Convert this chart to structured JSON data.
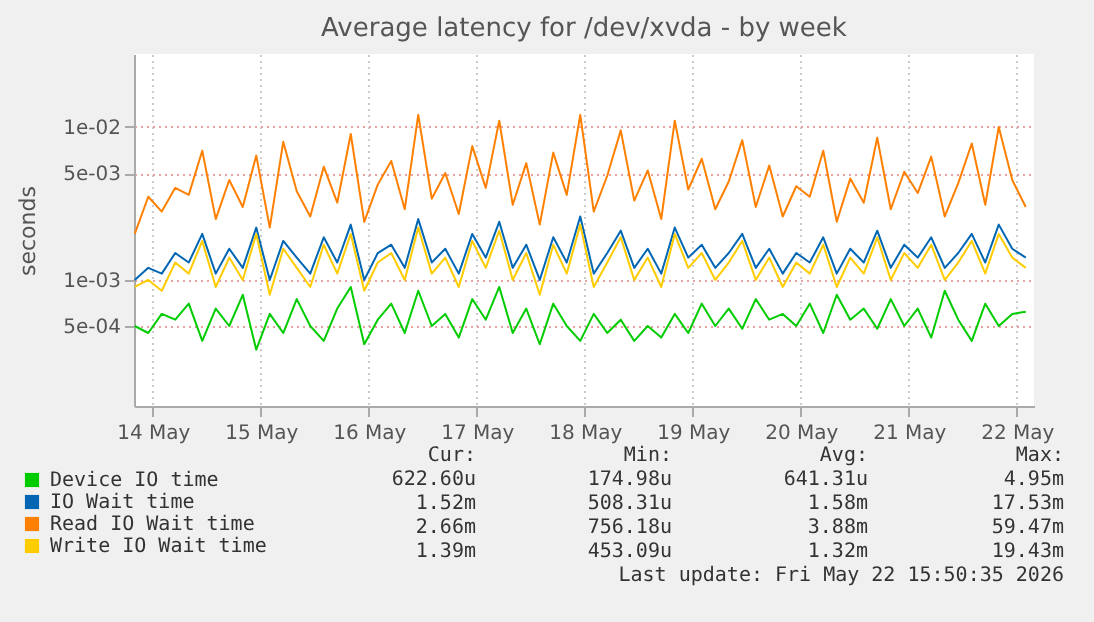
{
  "chart_data": {
    "type": "line",
    "title": "Average latency for /dev/xvda - by week",
    "ylabel": "seconds",
    "x": [
      "2026-05-14T08:00",
      "2026-05-14T11:00",
      "2026-05-14T14:00",
      "2026-05-14T17:00",
      "2026-05-14T20:00",
      "2026-05-14T23:00",
      "2026-05-15T02:00",
      "2026-05-15T05:00",
      "2026-05-15T08:00",
      "2026-05-15T11:00",
      "2026-05-15T14:00",
      "2026-05-15T17:00",
      "2026-05-15T20:00",
      "2026-05-15T23:00",
      "2026-05-16T02:00",
      "2026-05-16T05:00",
      "2026-05-16T08:00",
      "2026-05-16T11:00",
      "2026-05-16T14:00",
      "2026-05-16T17:00",
      "2026-05-16T20:00",
      "2026-05-16T23:00",
      "2026-05-17T02:00",
      "2026-05-17T05:00",
      "2026-05-17T08:00",
      "2026-05-17T11:00",
      "2026-05-17T14:00",
      "2026-05-17T17:00",
      "2026-05-17T20:00",
      "2026-05-17T23:00",
      "2026-05-18T02:00",
      "2026-05-18T05:00",
      "2026-05-18T08:00",
      "2026-05-18T11:00",
      "2026-05-18T14:00",
      "2026-05-18T17:00",
      "2026-05-18T20:00",
      "2026-05-18T23:00",
      "2026-05-19T02:00",
      "2026-05-19T05:00",
      "2026-05-19T08:00",
      "2026-05-19T11:00",
      "2026-05-19T14:00",
      "2026-05-19T17:00",
      "2026-05-19T20:00",
      "2026-05-19T23:00",
      "2026-05-20T02:00",
      "2026-05-20T05:00",
      "2026-05-20T08:00",
      "2026-05-20T11:00",
      "2026-05-20T14:00",
      "2026-05-20T17:00",
      "2026-05-20T20:00",
      "2026-05-20T23:00",
      "2026-05-21T02:00",
      "2026-05-21T05:00",
      "2026-05-21T08:00",
      "2026-05-21T11:00",
      "2026-05-21T14:00",
      "2026-05-21T17:00",
      "2026-05-21T20:00",
      "2026-05-21T23:00",
      "2026-05-22T02:00",
      "2026-05-22T05:00",
      "2026-05-22T08:00",
      "2026-05-22T11:00",
      "2026-05-22T14:00"
    ],
    "series": [
      {
        "name": "Device IO time",
        "color": "#00cc00",
        "values": [
          0.0005,
          0.00045,
          0.0006,
          0.00055,
          0.0007,
          0.0004,
          0.00065,
          0.0005,
          0.0008,
          0.00035,
          0.0006,
          0.00045,
          0.00075,
          0.0005,
          0.0004,
          0.00065,
          0.0009,
          0.00038,
          0.00055,
          0.0007,
          0.00045,
          0.00085,
          0.0005,
          0.0006,
          0.00042,
          0.00075,
          0.00055,
          0.0009,
          0.00045,
          0.00065,
          0.00038,
          0.0007,
          0.0005,
          0.0004,
          0.0006,
          0.00045,
          0.00055,
          0.0004,
          0.0005,
          0.00042,
          0.0006,
          0.00045,
          0.0007,
          0.0005,
          0.00065,
          0.00048,
          0.00075,
          0.00055,
          0.0006,
          0.0005,
          0.0007,
          0.00045,
          0.0008,
          0.00055,
          0.00065,
          0.00048,
          0.00075,
          0.0005,
          0.00065,
          0.00042,
          0.00085,
          0.00055,
          0.0004,
          0.0007,
          0.0005,
          0.0006,
          0.00062
        ]
      },
      {
        "name": "IO Wait time",
        "color": "#0066b3",
        "values": [
          0.001,
          0.0012,
          0.0011,
          0.0015,
          0.0013,
          0.002,
          0.0011,
          0.0016,
          0.0012,
          0.0022,
          0.001,
          0.0018,
          0.0014,
          0.0011,
          0.0019,
          0.0013,
          0.0023,
          0.001,
          0.0015,
          0.0017,
          0.0012,
          0.0025,
          0.0013,
          0.0016,
          0.0011,
          0.002,
          0.0014,
          0.0024,
          0.0012,
          0.0017,
          0.001,
          0.0019,
          0.0013,
          0.0026,
          0.0011,
          0.0015,
          0.0021,
          0.0012,
          0.0016,
          0.0011,
          0.0022,
          0.0014,
          0.0017,
          0.0012,
          0.0015,
          0.002,
          0.0012,
          0.0016,
          0.0011,
          0.0015,
          0.0013,
          0.0019,
          0.0011,
          0.0016,
          0.0013,
          0.0021,
          0.0012,
          0.0017,
          0.0014,
          0.0019,
          0.0012,
          0.0015,
          0.002,
          0.0013,
          0.0023,
          0.0016,
          0.0014
        ]
      },
      {
        "name": "Read IO Wait time",
        "color": "#ff8000",
        "values": [
          0.002,
          0.0035,
          0.0028,
          0.004,
          0.0036,
          0.007,
          0.0025,
          0.0045,
          0.003,
          0.0065,
          0.0022,
          0.008,
          0.0038,
          0.0026,
          0.0055,
          0.0032,
          0.009,
          0.0024,
          0.0042,
          0.006,
          0.0029,
          0.012,
          0.0034,
          0.005,
          0.0027,
          0.0075,
          0.004,
          0.011,
          0.0031,
          0.0058,
          0.0023,
          0.0068,
          0.0036,
          0.012,
          0.0028,
          0.0048,
          0.0095,
          0.0033,
          0.0052,
          0.0025,
          0.011,
          0.0039,
          0.0062,
          0.0029,
          0.0044,
          0.0082,
          0.003,
          0.0056,
          0.0026,
          0.0041,
          0.0035,
          0.007,
          0.0024,
          0.0046,
          0.0032,
          0.0085,
          0.0029,
          0.0051,
          0.0037,
          0.0064,
          0.0026,
          0.0043,
          0.0078,
          0.0031,
          0.01,
          0.0045,
          0.003
        ]
      },
      {
        "name": "Write IO Wait time",
        "color": "#ffcc00",
        "values": [
          0.0009,
          0.001,
          0.00085,
          0.0013,
          0.0011,
          0.0018,
          0.0009,
          0.0014,
          0.001,
          0.002,
          0.0008,
          0.0016,
          0.0012,
          0.0009,
          0.0017,
          0.0011,
          0.002,
          0.00085,
          0.0013,
          0.0015,
          0.001,
          0.0022,
          0.0011,
          0.0014,
          0.0009,
          0.0018,
          0.0012,
          0.0021,
          0.001,
          0.0015,
          0.0008,
          0.0017,
          0.0011,
          0.0023,
          0.0009,
          0.0013,
          0.0019,
          0.001,
          0.0014,
          0.0009,
          0.002,
          0.0012,
          0.0015,
          0.001,
          0.0013,
          0.0018,
          0.001,
          0.0014,
          0.0009,
          0.0013,
          0.0011,
          0.0017,
          0.0009,
          0.0014,
          0.0011,
          0.0019,
          0.001,
          0.0015,
          0.0012,
          0.0017,
          0.001,
          0.0013,
          0.0018,
          0.0011,
          0.002,
          0.0014,
          0.0012
        ]
      }
    ],
    "xlim": [
      "2026-05-14T07:50",
      "2026-05-22T15:50"
    ],
    "xticks": [
      {
        "value": "2026-05-14T12:00",
        "label": "14 May"
      },
      {
        "value": "2026-05-15T12:00",
        "label": "15 May"
      },
      {
        "value": "2026-05-16T12:00",
        "label": "16 May"
      },
      {
        "value": "2026-05-17T12:00",
        "label": "17 May"
      },
      {
        "value": "2026-05-18T12:00",
        "label": "18 May"
      },
      {
        "value": "2026-05-19T12:00",
        "label": "19 May"
      },
      {
        "value": "2026-05-20T12:00",
        "label": "20 May"
      },
      {
        "value": "2026-05-21T12:00",
        "label": "21 May"
      },
      {
        "value": "2026-05-22T12:00",
        "label": "22 May"
      }
    ],
    "ylim": [
      0.00015,
      0.03
    ],
    "yticks": [
      {
        "value": 0.0005,
        "label": "5e-04"
      },
      {
        "value": 0.001,
        "label": "1e-03"
      },
      {
        "value": 0.005,
        "label": "5e-03"
      },
      {
        "value": 0.01,
        "label": "1e-02"
      }
    ],
    "log": "y",
    "grid": true,
    "legend": "bottom",
    "annotations": [
      "Cur:",
      "Min:",
      "Avg:",
      "Max:",
      "622.60u",
      "174.98u",
      "641.31u",
      "4.95m",
      "1.52m",
      "508.31u",
      "1.58m",
      "17.53m",
      "2.66m",
      "756.18u",
      "3.88m",
      "59.47m",
      "1.39m",
      "453.09u",
      "1.32m",
      "19.43m",
      "Last update: Fri May 22 15:50:35 2026"
    ]
  }
}
